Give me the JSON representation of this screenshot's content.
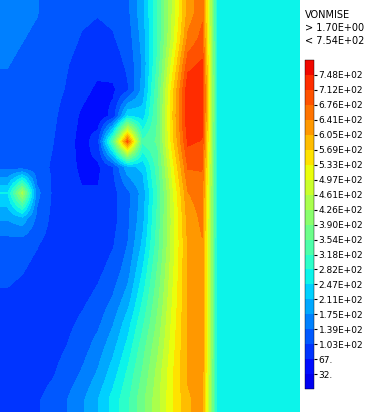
{
  "chart_data": {
    "type": "heatmap",
    "title": "VONMISE",
    "annotations": [
      "> 1.70E+00",
      "< 7.54E+02"
    ],
    "tick_labels": false,
    "cells": [
      [
        150,
        145,
        140,
        130,
        120,
        110,
        105,
        110,
        130,
        200,
        320,
        470,
        620,
        670,
        275,
        270,
        268,
        270,
        272,
        275
      ],
      [
        145,
        140,
        135,
        125,
        115,
        100,
        95,
        100,
        120,
        190,
        320,
        480,
        650,
        690,
        272,
        270,
        268,
        270,
        272,
        274
      ],
      [
        140,
        135,
        130,
        120,
        105,
        90,
        80,
        85,
        110,
        180,
        330,
        520,
        700,
        720,
        270,
        270,
        268,
        270,
        272,
        274
      ],
      [
        135,
        130,
        125,
        115,
        100,
        80,
        60,
        60,
        100,
        190,
        350,
        560,
        740,
        740,
        270,
        268,
        268,
        270,
        272,
        274
      ],
      [
        130,
        125,
        120,
        110,
        90,
        60,
        40,
        80,
        250,
        230,
        360,
        570,
        745,
        735,
        270,
        268,
        268,
        270,
        272,
        274
      ],
      [
        125,
        120,
        115,
        105,
        85,
        50,
        90,
        350,
        700,
        330,
        360,
        560,
        720,
        710,
        270,
        268,
        268,
        270,
        272,
        274
      ],
      [
        130,
        125,
        115,
        100,
        80,
        60,
        60,
        100,
        200,
        220,
        340,
        520,
        680,
        680,
        270,
        268,
        268,
        270,
        272,
        274
      ],
      [
        250,
        450,
        150,
        100,
        80,
        70,
        70,
        90,
        130,
        190,
        320,
        490,
        640,
        660,
        270,
        268,
        268,
        270,
        272,
        274
      ],
      [
        180,
        200,
        130,
        95,
        80,
        75,
        75,
        90,
        130,
        200,
        330,
        480,
        620,
        650,
        270,
        268,
        268,
        270,
        272,
        274
      ],
      [
        120,
        115,
        105,
        90,
        80,
        80,
        85,
        100,
        140,
        220,
        340,
        480,
        610,
        640,
        270,
        268,
        268,
        270,
        272,
        274
      ],
      [
        110,
        105,
        95,
        85,
        80,
        85,
        95,
        115,
        160,
        250,
        360,
        490,
        610,
        640,
        270,
        268,
        268,
        270,
        272,
        274
      ],
      [
        100,
        95,
        90,
        85,
        85,
        95,
        110,
        140,
        190,
        280,
        380,
        500,
        610,
        640,
        270,
        268,
        268,
        270,
        272,
        274
      ],
      [
        95,
        90,
        85,
        85,
        95,
        110,
        130,
        170,
        230,
        310,
        400,
        510,
        610,
        640,
        270,
        268,
        268,
        270,
        272,
        274
      ],
      [
        90,
        85,
        85,
        90,
        105,
        125,
        155,
        200,
        260,
        340,
        420,
        520,
        610,
        640,
        270,
        268,
        268,
        270,
        272,
        274
      ],
      [
        85,
        85,
        90,
        100,
        120,
        145,
        180,
        230,
        290,
        360,
        440,
        530,
        610,
        630,
        270,
        268,
        268,
        270,
        272,
        274
      ],
      [
        85,
        90,
        100,
        115,
        140,
        170,
        210,
        260,
        310,
        380,
        450,
        530,
        600,
        620,
        272,
        270,
        268,
        270,
        272,
        275
      ]
    ],
    "colorbar": {
      "range": [
        1.7,
        754
      ],
      "ticks": [
        {
          "value": 32,
          "label": "32."
        },
        {
          "value": 67,
          "label": "67."
        },
        {
          "value": 103,
          "label": "1.03E+02"
        },
        {
          "value": 139,
          "label": "1.39E+02"
        },
        {
          "value": 175,
          "label": "1.75E+02"
        },
        {
          "value": 211,
          "label": "2.11E+02"
        },
        {
          "value": 247,
          "label": "2.47E+02"
        },
        {
          "value": 282,
          "label": "2.82E+02"
        },
        {
          "value": 318,
          "label": "3.18E+02"
        },
        {
          "value": 354,
          "label": "3.54E+02"
        },
        {
          "value": 390,
          "label": "3.90E+02"
        },
        {
          "value": 426,
          "label": "4.26E+02"
        },
        {
          "value": 461,
          "label": "4.61E+02"
        },
        {
          "value": 497,
          "label": "4.97E+02"
        },
        {
          "value": 533,
          "label": "5.33E+02"
        },
        {
          "value": 569,
          "label": "5.69E+02"
        },
        {
          "value": 605,
          "label": "6.05E+02"
        },
        {
          "value": 641,
          "label": "6.41E+02"
        },
        {
          "value": 676,
          "label": "6.76E+02"
        },
        {
          "value": 712,
          "label": "7.12E+02"
        },
        {
          "value": 748,
          "label": "7.48E+02"
        }
      ]
    }
  }
}
